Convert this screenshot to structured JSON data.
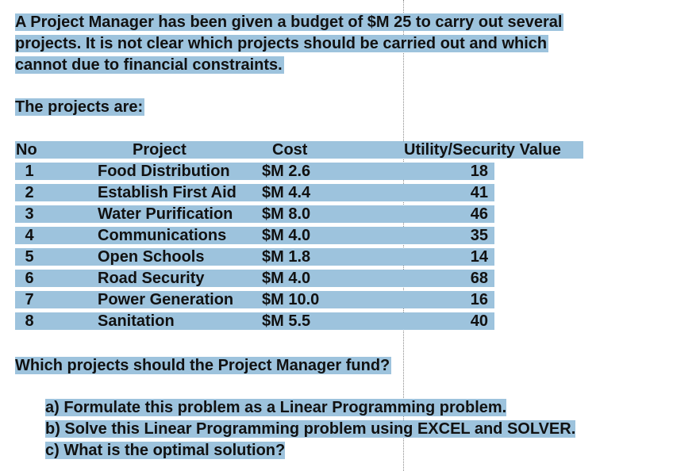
{
  "intro": [
    "A Project Manager has been given a budget of $M 25 to carry out several",
    "projects. It is not clear which projects should be carried out and which",
    "cannot due to financial constraints."
  ],
  "projects_heading": "The projects are:",
  "table": {
    "headers": [
      "No",
      "Project",
      "Cost",
      "Utility/Security Value"
    ],
    "rows": [
      {
        "no": "1",
        "project": "Food Distribution",
        "cost": "$M 2.6",
        "value": "18"
      },
      {
        "no": "2",
        "project": "Establish First Aid",
        "cost": "$M 4.4",
        "value": "41"
      },
      {
        "no": "3",
        "project": "Water Purification",
        "cost": "$M 8.0",
        "value": "46"
      },
      {
        "no": "4",
        "project": "Communications",
        "cost": "$M 4.0",
        "value": "35"
      },
      {
        "no": "5",
        "project": "Open Schools",
        "cost": "$M 1.8",
        "value": "14"
      },
      {
        "no": "6",
        "project": "Road Security",
        "cost": "$M 4.0",
        "value": "68"
      },
      {
        "no": "7",
        "project": "Power Generation",
        "cost": "$M 10.0",
        "value": "16"
      },
      {
        "no": "8",
        "project": "Sanitation",
        "cost": "$M 5.5",
        "value": "40"
      }
    ]
  },
  "question": "Which projects should the Project Manager fund?",
  "tasks": [
    "a) Formulate this problem as a Linear Programming problem.",
    "b) Solve this Linear Programming problem using EXCEL and SOLVER.",
    "c) What is the optimal solution?"
  ],
  "colors": {
    "highlight": "#9dc3dd",
    "text": "#111111"
  }
}
